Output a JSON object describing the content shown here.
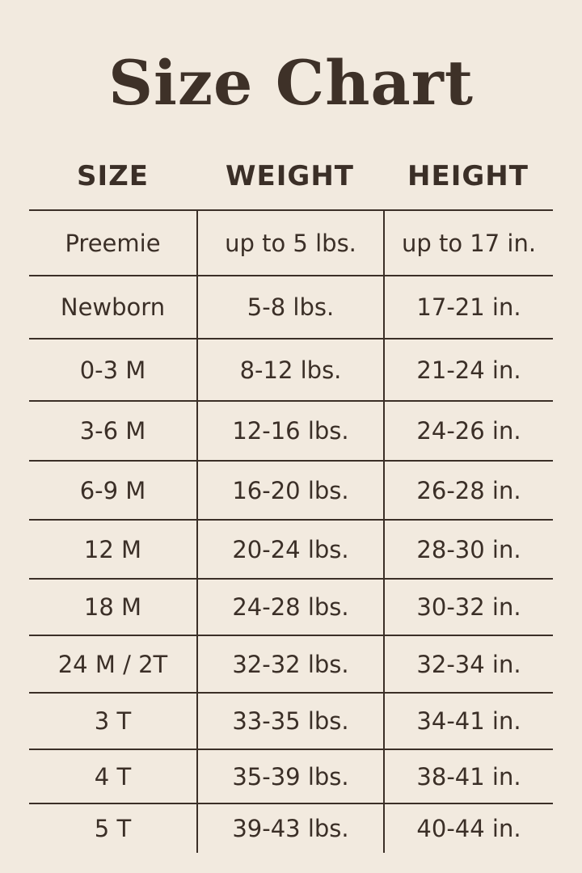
{
  "title": "Size Chart",
  "headers": [
    "SIZE",
    "WEIGHT",
    "HEIGHT"
  ],
  "rows": [
    {
      "size": "Preemie",
      "weight": "up to 5 lbs.",
      "height": "up to 17 in."
    },
    {
      "size": "Newborn",
      "weight": "5-8 lbs.",
      "height": "17-21 in."
    },
    {
      "size": "0-3 M",
      "weight": "8-12 lbs.",
      "height": "21-24 in."
    },
    {
      "size": "3-6 M",
      "weight": "12-16 lbs.",
      "height": "24-26 in."
    },
    {
      "size": "6-9 M",
      "weight": "16-20 lbs.",
      "height": "26-28 in."
    },
    {
      "size": "12 M",
      "weight": "20-24 lbs.",
      "height": "28-30 in."
    },
    {
      "size": "18 M",
      "weight": "24-28 lbs.",
      "height": "30-32 in."
    },
    {
      "size": "24 M / 2T",
      "weight": "32-32 lbs.",
      "height": "32-34 in."
    },
    {
      "size": "3 T",
      "weight": "33-35 lbs.",
      "height": "34-41 in."
    },
    {
      "size": "4 T",
      "weight": "35-39 lbs.",
      "height": "38-41 in."
    },
    {
      "size": "5 T",
      "weight": "39-43 lbs.",
      "height": "40-44 in."
    }
  ],
  "colors": {
    "background": "#f2eadf",
    "text": "#3b2f27"
  }
}
